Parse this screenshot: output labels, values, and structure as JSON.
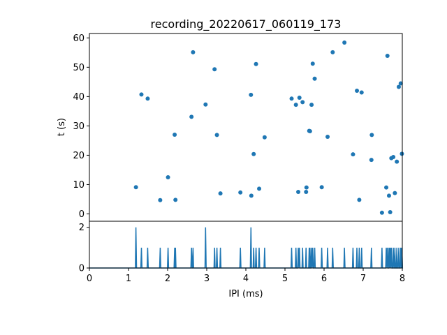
{
  "chart_data": {
    "type": "scatter",
    "title": "recording_20220617_060119_173",
    "colors": {
      "series": "#1f77b4",
      "axes": "#000000",
      "background": "#ffffff"
    },
    "raster": {
      "ylabel": "t (s)",
      "ylim": [
        61.5,
        -2.5
      ],
      "y_inverted": true,
      "yticks": [
        0,
        10,
        20,
        30,
        40,
        50,
        60
      ],
      "x": [
        1.19,
        1.33,
        1.49,
        1.81,
        2.01,
        2.18,
        2.2,
        2.61,
        2.65,
        2.97,
        3.2,
        3.26,
        3.35,
        3.86,
        4.13,
        4.14,
        4.2,
        4.26,
        4.34,
        4.48,
        5.17,
        5.28,
        5.34,
        5.37,
        5.45,
        5.54,
        5.55,
        5.62,
        5.64,
        5.68,
        5.71,
        5.76,
        5.94,
        6.09,
        6.22,
        6.52,
        6.74,
        6.84,
        6.9,
        6.96,
        7.21,
        7.22,
        7.48,
        7.59,
        7.62,
        7.66,
        7.69,
        7.72,
        7.77,
        7.81,
        7.86,
        7.91,
        7.96,
        7.99
      ],
      "y": [
        9.1,
        40.7,
        39.3,
        4.7,
        12.5,
        27.0,
        4.8,
        33.1,
        55.1,
        37.3,
        49.3,
        26.9,
        7.0,
        7.3,
        40.6,
        6.2,
        20.4,
        51.1,
        8.6,
        26.1,
        39.3,
        37.2,
        7.5,
        39.6,
        38.1,
        7.5,
        9.0,
        28.3,
        28.2,
        37.2,
        51.2,
        46.1,
        9.1,
        26.3,
        55.1,
        58.4,
        20.3,
        42.0,
        4.8,
        41.4,
        18.4,
        26.9,
        0.4,
        9.0,
        53.9,
        6.2,
        0.6,
        19.0,
        19.4,
        7.1,
        17.8,
        43.3,
        44.5,
        20.5
      ]
    },
    "ipi_histogram": {
      "type": "line",
      "xlabel": "IPI (ms)",
      "xlim": [
        0,
        8
      ],
      "xticks": [
        0,
        1,
        2,
        3,
        4,
        5,
        6,
        7,
        8
      ],
      "ylim": [
        0,
        2.3
      ],
      "yticks": [
        0,
        2
      ],
      "x": [
        1.19,
        1.33,
        1.49,
        1.81,
        2.01,
        2.18,
        2.2,
        2.61,
        2.65,
        2.97,
        3.2,
        3.26,
        3.35,
        3.86,
        4.13,
        4.2,
        4.26,
        4.34,
        4.48,
        5.17,
        5.28,
        5.34,
        5.37,
        5.45,
        5.54,
        5.62,
        5.64,
        5.68,
        5.71,
        5.76,
        5.94,
        6.09,
        6.22,
        6.52,
        6.74,
        6.84,
        6.9,
        6.96,
        7.21,
        7.48,
        7.59,
        7.62,
        7.66,
        7.69,
        7.72,
        7.77,
        7.81,
        7.86,
        7.91,
        7.96,
        7.99
      ],
      "counts": [
        2,
        1,
        1,
        1,
        1,
        1,
        1,
        1,
        1,
        2,
        1,
        1,
        1,
        1,
        2,
        1,
        1,
        1,
        1,
        1,
        1,
        1,
        1,
        1,
        1,
        1,
        1,
        1,
        1,
        1,
        1,
        1,
        1,
        1,
        1,
        1,
        1,
        1,
        1,
        1,
        1,
        1,
        1,
        1,
        1,
        1,
        1,
        1,
        1,
        1,
        1
      ]
    }
  }
}
